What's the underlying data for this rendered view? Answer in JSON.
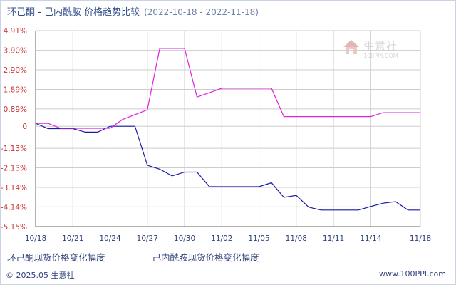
{
  "header": {
    "title": "环己酮 - 己内酰胺 价格趋势比较",
    "date_range": "(2022-10-18 - 2022-11-18)"
  },
  "legend": {
    "series1_label": "环己酮现货价格变化幅度",
    "series2_label": "己内酰胺现货价格变化幅度"
  },
  "footer": {
    "copyright": "© 2025.05 生意社",
    "site": "www.100PPI.com"
  },
  "watermark": {
    "name": "生意社",
    "url": "100PPI.COM"
  },
  "colors": {
    "series1": "#1a1aa6",
    "series2": "#e020e0",
    "grid": "#cccccc",
    "ytick": "#cc3333",
    "xtick": "#2e3f7a"
  },
  "chart_data": {
    "type": "line",
    "ylim": [
      -5.15,
      4.91
    ],
    "ytick_labels": [
      "4.91%",
      "3.90%",
      "2.90%",
      "1.89%",
      "0.89%",
      "0",
      "-1.13%",
      "-2.13%",
      "-3.14%",
      "-4.14%",
      "-5.15%"
    ],
    "ytick_values": [
      4.91,
      3.9,
      2.9,
      1.89,
      0.89,
      0,
      -1.13,
      -2.13,
      -3.14,
      -4.14,
      -5.15
    ],
    "x_dates": [
      "2022-10-18",
      "2022-11-18"
    ],
    "xtick_labels": [
      "10/18",
      "10/21",
      "10/24",
      "10/27",
      "10/30",
      "11/02",
      "11/05",
      "11/08",
      "11/11",
      "11/14",
      "11/18"
    ],
    "xtick_dates": [
      "2022-10-18",
      "2022-10-21",
      "2022-10-24",
      "2022-10-27",
      "2022-10-30",
      "2022-11-02",
      "2022-11-05",
      "2022-11-08",
      "2022-11-11",
      "2022-11-14",
      "2022-11-18"
    ],
    "grid": true,
    "series": [
      {
        "name": "环己酮现货价格变化幅度",
        "points": [
          [
            "2022-10-18",
            0.15
          ],
          [
            "2022-10-19",
            -0.12
          ],
          [
            "2022-10-21",
            -0.12
          ],
          [
            "2022-10-22",
            -0.3
          ],
          [
            "2022-10-23",
            -0.3
          ],
          [
            "2022-10-24",
            0.0
          ],
          [
            "2022-10-26",
            0.0
          ],
          [
            "2022-10-27",
            -2.0
          ],
          [
            "2022-10-28",
            -2.2
          ],
          [
            "2022-10-29",
            -2.55
          ],
          [
            "2022-10-30",
            -2.35
          ],
          [
            "2022-10-31",
            -2.35
          ],
          [
            "2022-11-01",
            -3.1
          ],
          [
            "2022-11-05",
            -3.1
          ],
          [
            "2022-11-06",
            -2.9
          ],
          [
            "2022-11-07",
            -3.65
          ],
          [
            "2022-11-08",
            -3.55
          ],
          [
            "2022-11-09",
            -4.15
          ],
          [
            "2022-11-10",
            -4.3
          ],
          [
            "2022-11-13",
            -4.3
          ],
          [
            "2022-11-14",
            -4.12
          ],
          [
            "2022-11-15",
            -3.95
          ],
          [
            "2022-11-16",
            -3.87
          ],
          [
            "2022-11-17",
            -4.3
          ],
          [
            "2022-11-18",
            -4.3
          ]
        ]
      },
      {
        "name": "己内酰胺现货价格变化幅度",
        "points": [
          [
            "2022-10-18",
            0.15
          ],
          [
            "2022-10-19",
            0.15
          ],
          [
            "2022-10-20",
            -0.1
          ],
          [
            "2022-10-24",
            -0.1
          ],
          [
            "2022-10-25",
            0.35
          ],
          [
            "2022-10-27",
            0.85
          ],
          [
            "2022-10-28",
            4.0
          ],
          [
            "2022-10-30",
            4.0
          ],
          [
            "2022-10-31",
            1.5
          ],
          [
            "2022-11-01",
            1.72
          ],
          [
            "2022-11-02",
            1.95
          ],
          [
            "2022-11-06",
            1.95
          ],
          [
            "2022-11-07",
            0.5
          ],
          [
            "2022-11-08",
            0.5
          ],
          [
            "2022-11-14",
            0.5
          ],
          [
            "2022-11-15",
            0.7
          ],
          [
            "2022-11-18",
            0.7
          ]
        ]
      }
    ]
  }
}
